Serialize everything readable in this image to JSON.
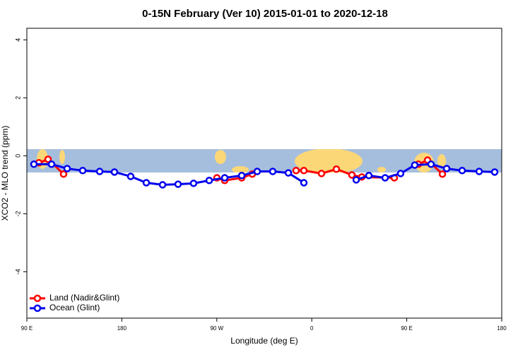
{
  "chart_data": {
    "type": "line",
    "title": "0-15N February (Ver 10)   2015-01-01 to 2020-12-18",
    "x_label": "Longitude (deg E)",
    "y_label": "XCO2 - MLO trend (ppm)",
    "xlim": [
      90,
      540
    ],
    "xticks": [
      {
        "value": 90,
        "label": "90 E"
      },
      180,
      {
        "value": 270,
        "label": "90 W"
      },
      {
        "value": 360,
        "label": "0"
      },
      {
        "value": 450,
        "label": "90 E"
      },
      {
        "value": 540,
        "label": "180"
      }
    ],
    "ylim": [
      -5.6,
      4.4
    ],
    "yticks": [
      -4,
      -2,
      0,
      2,
      4
    ],
    "legend": "bottom-left",
    "series": [
      {
        "name": "Land (Nadir&Glint)",
        "color": "#ff0000",
        "x": [
          101.4,
          110.1,
          124.8,
          200,
          270.1,
          277.5,
          293.6,
          303.6,
          320,
          345.1,
          352.5,
          369.2,
          383.3,
          398.0,
          407.4,
          438.2,
          450,
          461.0,
          469.7,
          483.8
        ],
        "values": [
          -0.24,
          -0.12,
          -0.63,
          null,
          -0.76,
          -0.85,
          -0.76,
          -0.63,
          null,
          -0.51,
          -0.51,
          -0.61,
          -0.46,
          -0.66,
          -0.73,
          -0.76,
          null,
          -0.29,
          -0.15,
          -0.63
        ]
      },
      {
        "name": "Ocean (Glint)",
        "color": "#0000ee",
        "x": [
          96.7,
          113.4,
          128.2,
          142.9,
          159.0,
          173.0,
          188.4,
          203.2,
          218.6,
          233.3,
          248.0,
          262.8,
          277.5,
          293.6,
          308.3,
          323.0,
          337.8,
          352.5,
          377.3,
          402.1,
          414.1,
          429.5,
          444.2,
          457.6,
          473.0,
          487.8,
          502.5,
          518.6,
          533.3
        ],
        "values": [
          -0.29,
          -0.29,
          -0.44,
          -0.51,
          -0.54,
          -0.56,
          -0.71,
          -0.93,
          -1.0,
          -0.98,
          -0.95,
          -0.85,
          -0.76,
          -0.68,
          -0.54,
          -0.54,
          -0.59,
          -0.93,
          null,
          -0.83,
          -0.68,
          -0.76,
          -0.61,
          -0.32,
          -0.29,
          -0.44,
          -0.51,
          -0.54,
          -0.56
        ]
      }
    ]
  }
}
